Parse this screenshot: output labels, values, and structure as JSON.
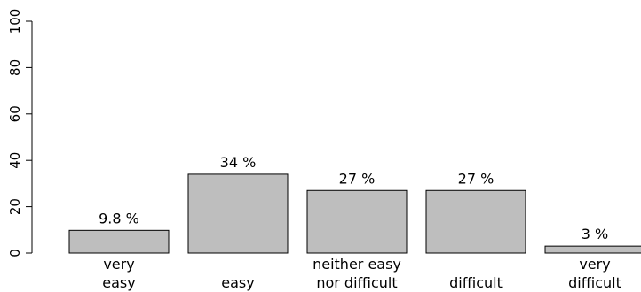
{
  "chart_data": {
    "type": "bar",
    "title": "",
    "xlabel": "",
    "ylabel": "",
    "ylim": [
      0,
      100
    ],
    "yticks": [
      "0",
      "20",
      "40",
      "60",
      "80",
      "100"
    ],
    "grid": false,
    "categories": [
      [
        "very",
        "easy"
      ],
      [
        "easy"
      ],
      [
        "neither easy",
        "nor difficult"
      ],
      [
        "difficult"
      ],
      [
        "very",
        "difficult"
      ]
    ],
    "values": [
      9.8,
      34,
      27,
      27,
      3
    ],
    "data_labels": [
      "9.8 %",
      "34 %",
      "27 %",
      "27 %",
      "3 %"
    ],
    "bar_color": "#bebebe",
    "edge_color": "#000000"
  }
}
